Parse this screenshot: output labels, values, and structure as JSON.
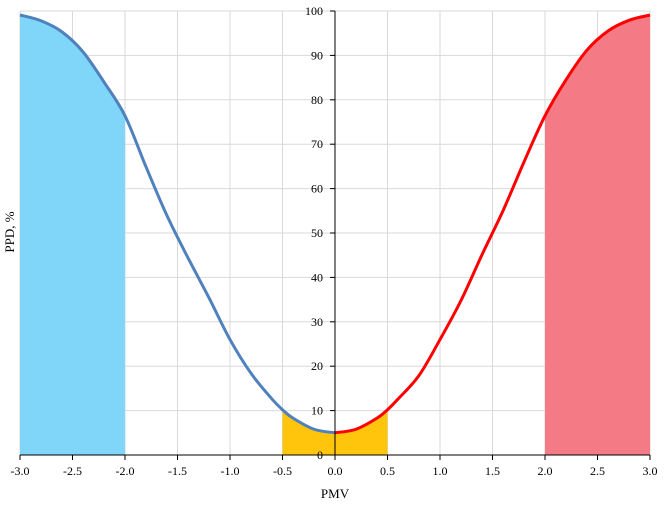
{
  "chart_data": {
    "type": "line",
    "title": "",
    "xlabel": "PMV",
    "ylabel": "PPD, %",
    "xlim": [
      -3.0,
      3.0
    ],
    "ylim": [
      0,
      100
    ],
    "grid": true,
    "x_ticks": [
      "-3.0",
      "-2.5",
      "-2.0",
      "-1.5",
      "-1.0",
      "-0.5",
      "0.0",
      "0.5",
      "1.0",
      "1.5",
      "2.0",
      "2.5",
      "3.0"
    ],
    "y_ticks": [
      "0",
      "10",
      "20",
      "30",
      "40",
      "50",
      "60",
      "70",
      "80",
      "90",
      "100"
    ],
    "series": [
      {
        "color": "#4f81bd",
        "x": [
          -3.0,
          -2.8,
          -2.6,
          -2.4,
          -2.2,
          -2.0,
          -1.8,
          -1.6,
          -1.4,
          -1.2,
          -1.0,
          -0.8,
          -0.6,
          -0.5,
          -0.4,
          -0.2,
          0.0
        ],
        "y": [
          99.1,
          97.8,
          95.3,
          90.8,
          84.0,
          76.4,
          64.9,
          53.9,
          44.4,
          35.4,
          26.0,
          18.4,
          12.6,
          10.2,
          8.3,
          5.8,
          5.0
        ]
      },
      {
        "color": "#ff0000",
        "x": [
          0.0,
          0.2,
          0.4,
          0.5,
          0.6,
          0.8,
          1.0,
          1.2,
          1.4,
          1.6,
          1.8,
          2.0,
          2.2,
          2.4,
          2.6,
          2.8,
          3.0
        ],
        "y": [
          5.0,
          5.8,
          8.3,
          10.2,
          12.6,
          17.9,
          26.0,
          34.8,
          45.1,
          55.0,
          66.0,
          76.4,
          84.5,
          91.2,
          95.5,
          97.9,
          99.1
        ]
      }
    ],
    "shaded_regions": [
      {
        "x_from": -3.0,
        "x_to": -2.0,
        "series_index": 0,
        "color": "#7fd6f9"
      },
      {
        "x_from": -0.5,
        "x_to": 0.0,
        "series_index": 0,
        "color": "#ffc50c"
      },
      {
        "x_from": 0.0,
        "x_to": 0.5,
        "series_index": 1,
        "color": "#ffc50c"
      },
      {
        "x_from": 2.0,
        "x_to": 3.0,
        "series_index": 1,
        "color": "#f47b85"
      }
    ],
    "gridline_color": "#d9d9d9",
    "axis_color": "#000000"
  }
}
